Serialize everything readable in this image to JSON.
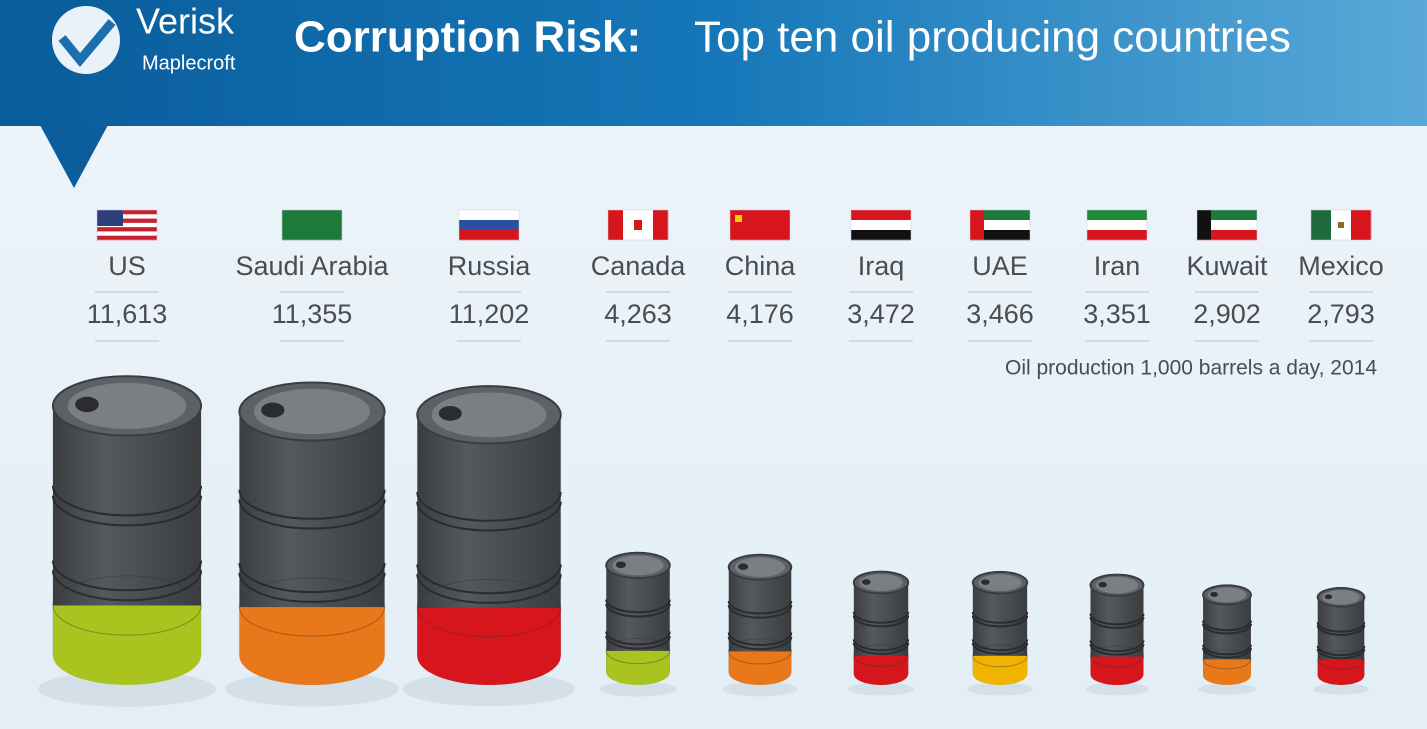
{
  "brand": {
    "name": "Verisk",
    "sub": "Maplecroft"
  },
  "chart_data": {
    "type": "barrel",
    "title": "Corruption Risk:",
    "subtitle": "Top ten oil producing countries",
    "note": "Oil production 1,000 barrels a day, 2014",
    "categories": [
      "US",
      "Saudi Arabia",
      "Russia",
      "Canada",
      "China",
      "Iraq",
      "UAE",
      "Iran",
      "Kuwait",
      "Mexico"
    ],
    "values": [
      11613,
      11355,
      11202,
      4263,
      4176,
      3472,
      3466,
      3351,
      2902,
      2793
    ],
    "value_labels": [
      "11,613",
      "11,355",
      "11,202",
      "4,263",
      "4,176",
      "3,472",
      "3,466",
      "3,351",
      "2,902",
      "2,793"
    ],
    "colors": [
      "#a9c41e",
      "#e8781a",
      "#d7151c",
      "#a9c41e",
      "#e8781a",
      "#d7151c",
      "#f0b400",
      "#d7151c",
      "#e8781a",
      "#d7151c"
    ]
  }
}
